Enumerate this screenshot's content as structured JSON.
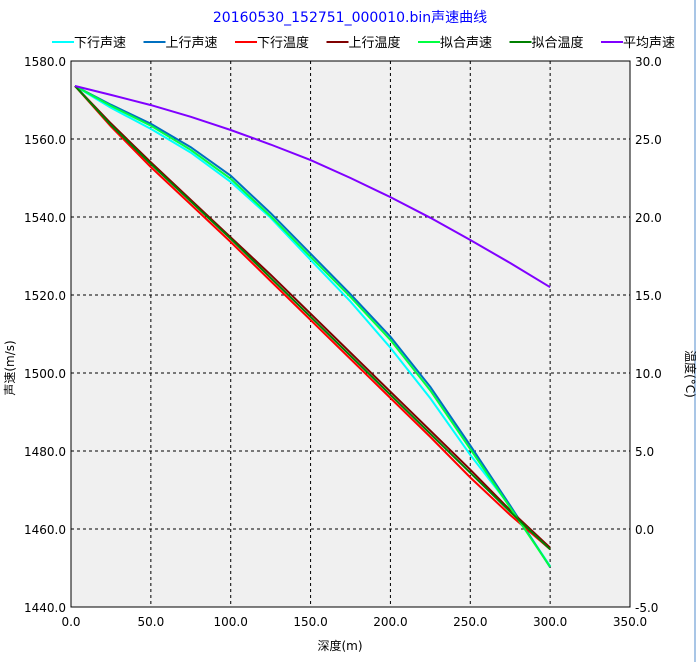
{
  "chart_data": {
    "type": "line",
    "title": "20160530_152751_000010.bin声速曲线",
    "xlabel": "深度(m)",
    "ylabel": "声速(m/s)",
    "y2label": "温度(°C)",
    "xlim": [
      0,
      350
    ],
    "ylim": [
      1440,
      1580
    ],
    "y2lim": [
      -5,
      30
    ],
    "xticks": [
      "0.0",
      "50.0",
      "100.0",
      "150.0",
      "200.0",
      "250.0",
      "300.0",
      "350.0"
    ],
    "yticks": [
      "1440.0",
      "1460.0",
      "1480.0",
      "1500.0",
      "1520.0",
      "1540.0",
      "1560.0",
      "1580.0"
    ],
    "y2ticks": [
      "-5.0",
      "0.0",
      "5.0",
      "10.0",
      "15.0",
      "20.0",
      "25.0",
      "30.0"
    ],
    "grid": true,
    "legend_position": "top",
    "x": [
      2.5,
      25,
      50,
      75,
      100,
      125,
      150,
      175,
      200,
      225,
      250,
      275,
      300
    ],
    "series": [
      {
        "name": "下行声速",
        "axis": "left",
        "color": "#00ffff",
        "values": [
          1573.6,
          1568.0,
          1562.6,
          1556.5,
          1549.0,
          1539.8,
          1529.0,
          1518.3,
          1506.5,
          1493.5,
          1479.0,
          1465.8,
          1450.5
        ]
      },
      {
        "name": "上行声速",
        "axis": "left",
        "color": "#0070c0",
        "values": [
          1573.6,
          1568.8,
          1563.9,
          1557.9,
          1550.6,
          1541.0,
          1530.6,
          1520.2,
          1509.3,
          1496.4,
          1481.4,
          1466.0,
          1450.2
        ]
      },
      {
        "name": "下行温度",
        "axis": "right",
        "color": "#ff0000",
        "values": [
          28.4,
          25.8,
          23.2,
          20.8,
          18.4,
          15.9,
          13.4,
          10.9,
          8.4,
          5.9,
          3.3,
          0.9,
          -1.3
        ]
      },
      {
        "name": "上行温度",
        "axis": "right",
        "color": "#800000",
        "values": [
          28.4,
          26.0,
          23.5,
          21.1,
          18.7,
          16.3,
          13.8,
          11.3,
          8.8,
          6.3,
          3.8,
          1.2,
          -1.2
        ]
      },
      {
        "name": "拟合声速",
        "axis": "left",
        "color": "#00ff40",
        "values": [
          1573.6,
          1568.5,
          1563.4,
          1557.2,
          1549.8,
          1540.2,
          1529.8,
          1519.5,
          1508.5,
          1495.5,
          1480.5,
          1465.5,
          1450.3
        ]
      },
      {
        "name": "拟合温度",
        "axis": "right",
        "color": "#008000",
        "values": [
          28.4,
          25.9,
          23.4,
          21.0,
          18.6,
          16.1,
          13.6,
          11.1,
          8.6,
          6.1,
          3.6,
          1.1,
          -1.3
        ]
      },
      {
        "name": "平均声速",
        "axis": "left",
        "color": "#8000ff",
        "values": [
          1573.6,
          1571.3,
          1568.7,
          1565.7,
          1562.3,
          1558.6,
          1554.6,
          1550.0,
          1545.1,
          1539.8,
          1534.1,
          1528.2,
          1522.0
        ]
      }
    ]
  }
}
